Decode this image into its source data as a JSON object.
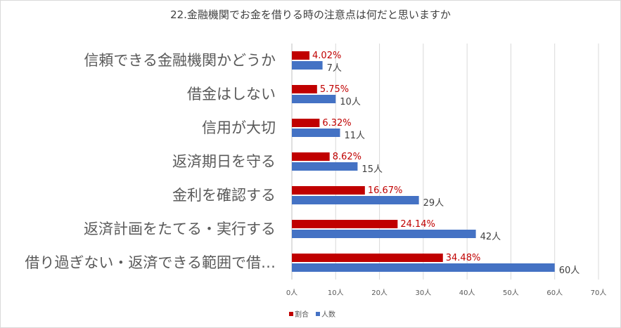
{
  "chart_data": {
    "type": "bar",
    "orientation": "horizontal",
    "title": "22.金融機関でお金を借りる時の注意点は何だと思いますか",
    "categories": [
      "信頼できる金融機関かどうか",
      "借金はしない",
      "信用が大切",
      "返済期日を守る",
      "金利を確認する",
      "返済計画をたてる・実行する",
      "借り過ぎない・返済できる範囲で借…"
    ],
    "series": [
      {
        "name": "割合",
        "color": "#c00000",
        "values": [
          4.02,
          5.75,
          6.32,
          8.62,
          16.67,
          24.14,
          34.48
        ],
        "labels": [
          "4.02%",
          "5.75%",
          "6.32%",
          "8.62%",
          "16.67%",
          "24.14%",
          "34.48%"
        ]
      },
      {
        "name": "人数",
        "color": "#4472c4",
        "values": [
          7,
          10,
          11,
          15,
          29,
          42,
          60
        ],
        "labels": [
          "7人",
          "10人",
          "11人",
          "15人",
          "29人",
          "42人",
          "60人"
        ]
      }
    ],
    "xlim": [
      0,
      70
    ],
    "xticks": [
      0,
      10,
      20,
      30,
      40,
      50,
      60,
      70
    ],
    "xtick_labels": [
      "0人",
      "10人",
      "20人",
      "30人",
      "40人",
      "50人",
      "60人",
      "70人"
    ],
    "grid": true,
    "legend_position": "bottom-left"
  }
}
